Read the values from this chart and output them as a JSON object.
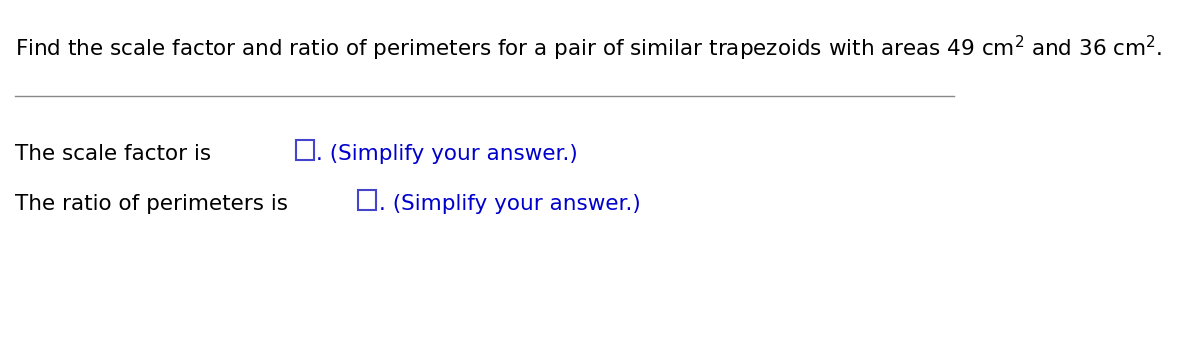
{
  "bg_color": "#ffffff",
  "title_line": "Find the scale factor and ratio of perimeters for a pair of similar trapezoids with areas 49 cm",
  "title_superscript_1": "2",
  "title_mid": " and 36 cm",
  "title_superscript_2": "2",
  "title_end": ".",
  "line1_prefix": "The scale factor is",
  "line1_suffix": ". (Simplify your answer.)",
  "line2_prefix": "The ratio of perimeters is",
  "line2_suffix": ". (Simplify your answer.)",
  "text_color_black": "#000000",
  "text_color_blue": "#0000cc",
  "box_color": "#4444cc",
  "separator_color": "#888888",
  "title_fontsize": 15.5,
  "body_fontsize": 15.5,
  "simplify_fontsize": 15.5
}
